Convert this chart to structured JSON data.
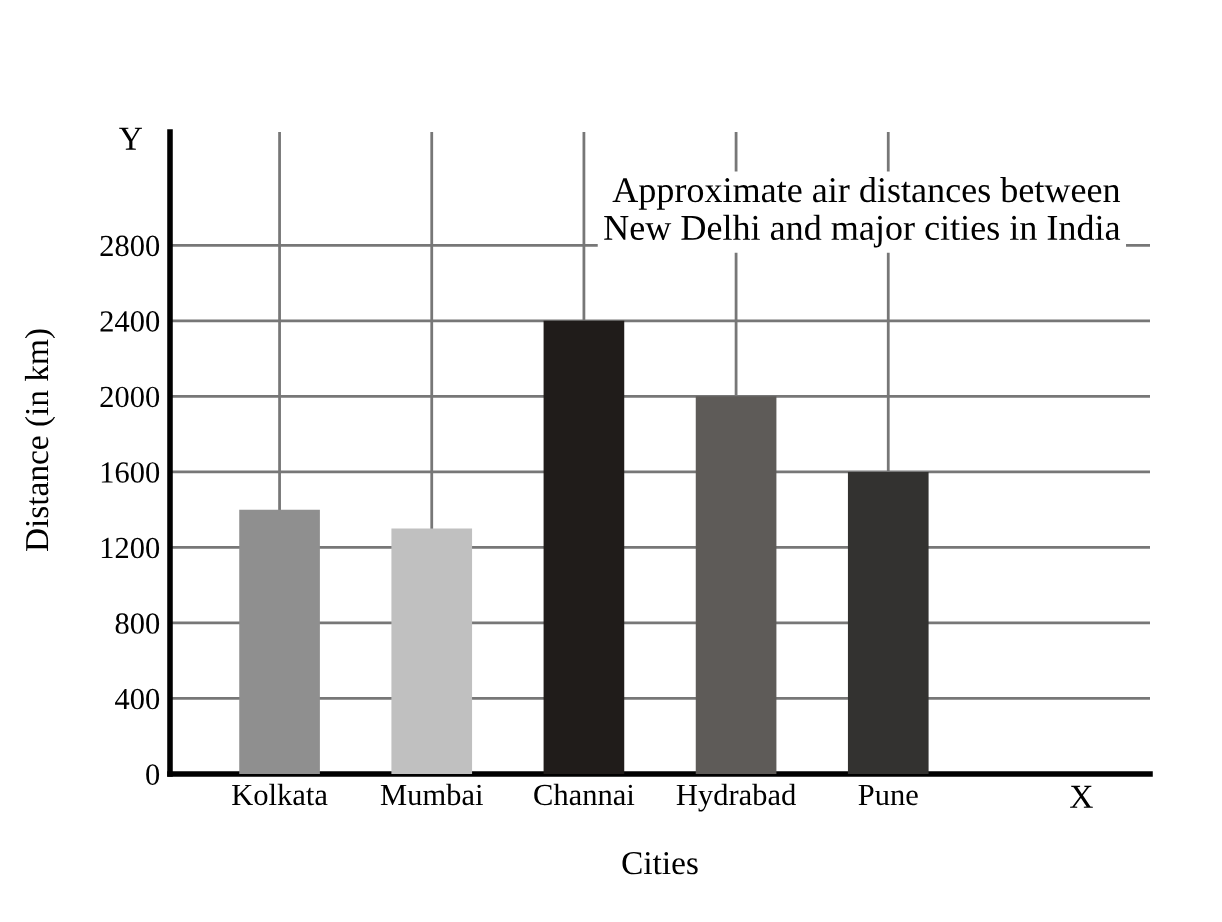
{
  "chart_data": {
    "type": "bar",
    "title": "Approximate air distances between\nNew Delhi and major cities in India",
    "xlabel": "Cities",
    "ylabel": "Distance (in km)",
    "categories": [
      "Kolkata",
      "Mumbai",
      "Channai",
      "Hydrabad",
      "Pune"
    ],
    "values": [
      1400,
      1300,
      2400,
      2000,
      1600
    ],
    "colors": [
      "#8f8f8f",
      "#c0c0c0",
      "#201c1a",
      "#5e5b58",
      "#333230"
    ],
    "ylim": [
      0,
      3400
    ],
    "yticks": [
      0,
      400,
      800,
      1200,
      1600,
      2000,
      2400,
      2800
    ],
    "annotations": [
      "Y",
      "X"
    ],
    "grid": true
  }
}
